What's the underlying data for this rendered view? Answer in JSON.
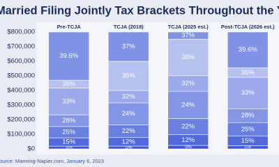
{
  "chart_data": {
    "type": "stacked-bar",
    "title": "Married Filing Jointly Tax Brackets Throughout the Years",
    "source": "Source: Manning-Napier.com, January 6, 2023",
    "ylim": [
      0,
      800000
    ],
    "yticks": [
      {
        "value": 0,
        "label": "$0"
      },
      {
        "value": 100000,
        "label": "$100,000"
      },
      {
        "value": 200000,
        "label": "$200,000"
      },
      {
        "value": 300000,
        "label": "$300,000"
      },
      {
        "value": 400000,
        "label": "$400,000"
      },
      {
        "value": 500000,
        "label": "$500,000"
      },
      {
        "value": 600000,
        "label": "$600,000"
      },
      {
        "value": 700000,
        "label": "$700,000"
      },
      {
        "value": 800000,
        "label": "$800,000"
      }
    ],
    "colors": [
      "#3d56d2",
      "#5169da",
      "#6a80e0",
      "#8596e6",
      "#9caaeb",
      "#b6c1f0",
      "#7f92e4"
    ],
    "columns": [
      {
        "name": "Pre-TCJA",
        "rates": [
          "10%",
          "15%",
          "25%",
          "28%",
          "33%",
          "35%",
          "39.6%"
        ],
        "values": [
          18650,
          57250,
          77200,
          80250,
          183350,
          54000,
          329300
        ]
      },
      {
        "name": "TCJA (2018)",
        "rates": [
          "10%",
          "12%",
          "22%",
          "24%",
          "32%",
          "35%",
          "37%"
        ],
        "values": [
          19050,
          58350,
          87600,
          150000,
          85000,
          200000,
          200000
        ]
      },
      {
        "name": "TCJA (2025 est.)",
        "rates": [
          "10%",
          "12%",
          "22%",
          "24%",
          "32%",
          "35%",
          "37%"
        ],
        "values": [
          23850,
          73100,
          109750,
          187900,
          106450,
          250550,
          48400
        ]
      },
      {
        "name": "Post-TCJA (2026 est.)",
        "rates": [
          "10%",
          "15%",
          "25%",
          "28%",
          "33%",
          "35%",
          "39.6%"
        ],
        "values": [
          22000,
          67000,
          91000,
          95000,
          215000,
          65000,
          245000
        ]
      }
    ]
  }
}
